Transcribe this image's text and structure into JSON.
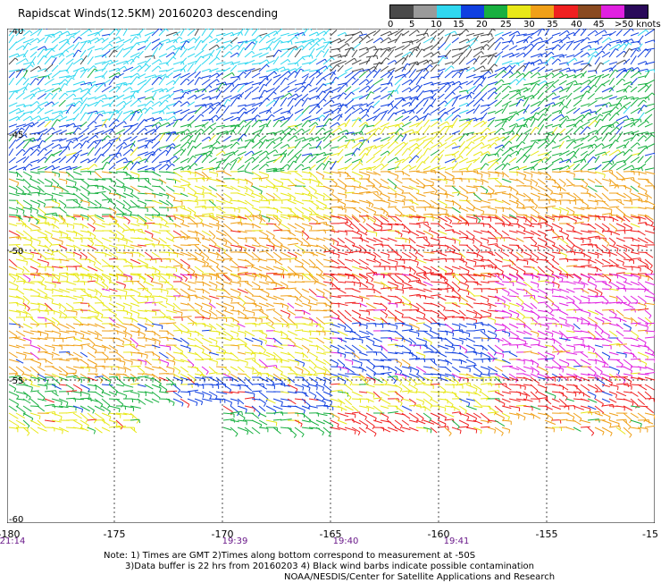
{
  "title": "Rapidscat Winds(12.5KM) 20160203 descending",
  "legend": {
    "labels": [
      "0",
      "5",
      "10",
      "15",
      "20",
      "25",
      "30",
      "35",
      "40",
      "45",
      ">50 knots"
    ],
    "colors": [
      "#4a4a4a",
      "#9a9a9a",
      "#30d8f0",
      "#1040e0",
      "#18b040",
      "#e8e818",
      "#f0a018",
      "#f02020",
      "#8a4a20",
      "#e020e0",
      "#2a0a5a"
    ]
  },
  "axes": {
    "lat_labels": [
      "-40",
      "-45",
      "-50",
      "-55",
      "-60"
    ],
    "lon_labels": [
      "-180",
      "-175",
      "-170",
      "-165",
      "-160",
      "-155",
      "-15"
    ],
    "times": [
      "21:14",
      "19:39",
      "19:40",
      "19:41"
    ]
  },
  "notes": [
    "Note: 1) Times are GMT 2)Times along bottom correspond to measurement at -50S",
    "3)Data buffer is 22 hrs from 20160203 4) Black wind barbs indicate possible contamination",
    "NOAA/NESDIS/Center for Satellite Applications and Research"
  ]
}
